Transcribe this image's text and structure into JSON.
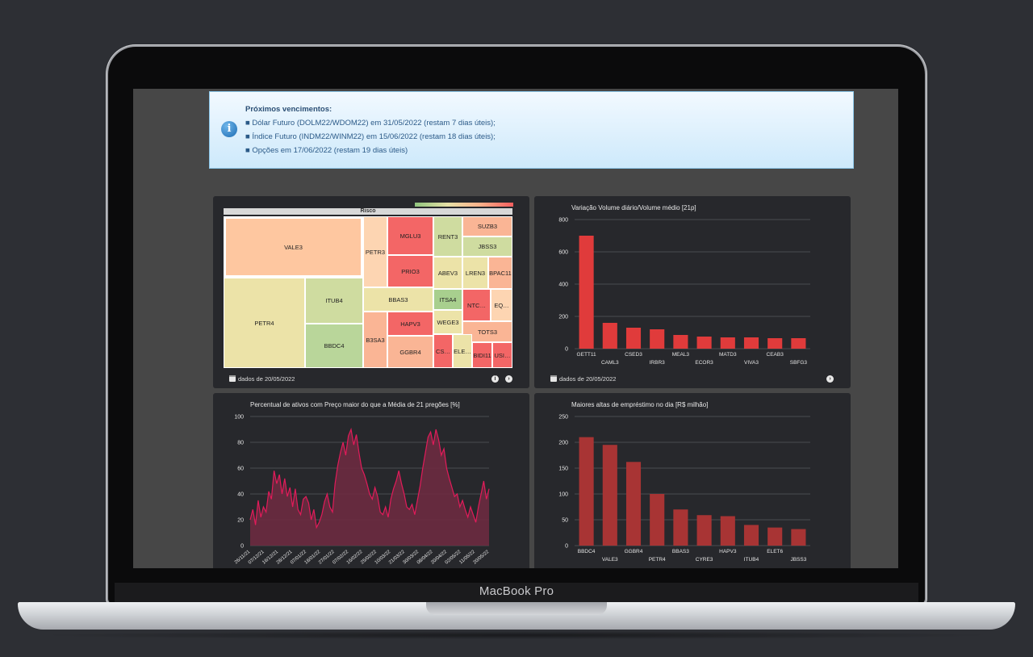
{
  "device": {
    "label": "MacBook Pro"
  },
  "notice": {
    "title": "Próximos vencimentos:",
    "lines": [
      "■ Dólar Futuro (DOLM22/WDOM22) em 31/05/2022 (restam 7 dias úteis);",
      "■ Índice Futuro (INDM22/WINM22) em 15/06/2022 (restam 18 dias úteis);",
      "■ Opções em 17/06/2022 (restam 19 dias úteis)"
    ]
  },
  "colors": {
    "risk_high": "#f36666",
    "risk_mid_high": "#fab595",
    "risk_peach": "#fec7a0",
    "risk_neutral": "#ece3a8",
    "risk_low": "#c2d9a0",
    "risk_lowest": "#8fc27c",
    "volume_bar": "#e03b3b",
    "lending_bar": "#a83434",
    "percent_line": "#e21b5a"
  },
  "treemap": {
    "header": "Risco",
    "footer": "dados de 20/05/2022",
    "cells": [
      {
        "label": "VALE3",
        "color": "#fec7a0"
      },
      {
        "label": "PETR4",
        "color": "#ece3a8"
      },
      {
        "label": "ITUB4",
        "color": "#cfdca0"
      },
      {
        "label": "BBDC4",
        "color": "#b9d69a"
      },
      {
        "label": "PETR3",
        "color": "#fdd5b2"
      },
      {
        "label": "MGLU3",
        "color": "#f36666"
      },
      {
        "label": "PRIO3",
        "color": "#f36666"
      },
      {
        "label": "RENT3",
        "color": "#cfdca0"
      },
      {
        "label": "ABEV3",
        "color": "#ece3a8"
      },
      {
        "label": "SUZB3",
        "color": "#fab595"
      },
      {
        "label": "JBSS3",
        "color": "#cfdca0"
      },
      {
        "label": "LREN3",
        "color": "#ece3a8"
      },
      {
        "label": "BPAC11",
        "color": "#fab595"
      },
      {
        "label": "BBAS3",
        "color": "#ece3a8"
      },
      {
        "label": "ITSA4",
        "color": "#a8cf8e"
      },
      {
        "label": "NTC…",
        "color": "#f36666"
      },
      {
        "label": "EQ…",
        "color": "#fdd5b2"
      },
      {
        "label": "HAPV3",
        "color": "#f36666"
      },
      {
        "label": "WEGE3",
        "color": "#ece3a8"
      },
      {
        "label": "B3SA3",
        "color": "#fab595"
      },
      {
        "label": "TOTS3",
        "color": "#fab595"
      },
      {
        "label": "GGBR4",
        "color": "#fab595"
      },
      {
        "label": "CS…",
        "color": "#f36666"
      },
      {
        "label": "ELE…",
        "color": "#ece3a8"
      },
      {
        "label": "BIDI11",
        "color": "#f36666"
      },
      {
        "label": "USI…",
        "color": "#f36666"
      }
    ]
  },
  "volume_chart": {
    "title": "Variação Volume diário/Volume médio [21p]",
    "footer": "dados de 20/05/2022"
  },
  "percent_chart": {
    "title": "Percentual de ativos com Preço maior do que a Média de 21 pregões [%]"
  },
  "lending_chart": {
    "title": "Maiores altas de empréstimo no dia [R$ milhão]"
  },
  "chart_data": [
    {
      "type": "bar",
      "title": "Variação Volume diário/Volume médio [21p]",
      "categories": [
        "GETT11",
        "CAML3",
        "CSED3",
        "IRBR3",
        "MEAL3",
        "ECOR3",
        "MATD3",
        "VIVA3",
        "CEAB3",
        "SBFG3"
      ],
      "values": [
        700,
        160,
        130,
        120,
        85,
        75,
        70,
        70,
        65,
        65
      ],
      "yticks": [
        0,
        200,
        400,
        600,
        800
      ],
      "ylim": [
        0,
        800
      ],
      "grid": true
    },
    {
      "type": "area",
      "title": "Percentual de ativos com Preço maior do que a Média de 21 pregões [%]",
      "xticks": [
        "26/11/21",
        "07/12/21",
        "16/12/21",
        "28/12/21",
        "07/01/22",
        "18/01/22",
        "27/01/22",
        "07/02/22",
        "16/02/22",
        "25/02/22",
        "10/03/22",
        "21/03/22",
        "30/03/22",
        "08/04/22",
        "20/04/22",
        "02/05/22",
        "11/05/22",
        "20/05/22"
      ],
      "values": [
        20,
        28,
        16,
        35,
        22,
        30,
        26,
        42,
        36,
        58,
        48,
        55,
        40,
        52,
        38,
        45,
        30,
        44,
        28,
        24,
        36,
        38,
        33,
        20,
        28,
        14,
        18,
        24,
        34,
        40,
        30,
        26,
        48,
        62,
        72,
        80,
        70,
        85,
        90,
        78,
        86,
        72,
        60,
        55,
        48,
        40,
        36,
        45,
        38,
        26,
        24,
        30,
        22,
        36,
        44,
        50,
        58,
        48,
        40,
        30,
        28,
        32,
        24,
        35,
        46,
        60,
        72,
        84,
        88,
        78,
        90,
        82,
        70,
        75,
        60,
        52,
        45,
        38,
        40,
        30,
        35,
        28,
        22,
        30,
        24,
        18,
        30,
        40,
        50,
        36,
        44
      ],
      "yticks": [
        0,
        20,
        40,
        60,
        80,
        100
      ],
      "ylim": [
        0,
        100
      ],
      "grid": true
    },
    {
      "type": "bar",
      "title": "Maiores altas de empréstimo no dia [R$ milhão]",
      "categories": [
        "BBDC4",
        "VALE3",
        "GGBR4",
        "PETR4",
        "BBAS3",
        "CYRE3",
        "HAPV3",
        "ITUB4",
        "ELET6",
        "JBSS3"
      ],
      "values": [
        210,
        195,
        162,
        100,
        70,
        59,
        57,
        40,
        35,
        32
      ],
      "yticks": [
        0,
        50,
        100,
        150,
        200,
        250
      ],
      "ylim": [
        0,
        250
      ],
      "grid": true
    }
  ]
}
